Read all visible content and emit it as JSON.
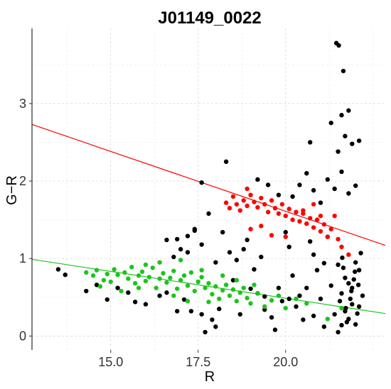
{
  "chart_data": {
    "type": "scatter",
    "title": "J01149_0022",
    "xlabel": "R",
    "ylabel": "G−R",
    "xlim": [
      12.75,
      22.85
    ],
    "ylim": [
      -0.18,
      3.97
    ],
    "x_ticks": [
      15.0,
      17.5,
      20.0
    ],
    "x_tick_labels": [
      "15.0",
      "17.5",
      "20.0"
    ],
    "y_ticks": [
      0,
      1,
      2,
      3
    ],
    "y_tick_labels": [
      "0",
      "1",
      "2",
      "3"
    ],
    "grid": true,
    "colors": {
      "black": "#000000",
      "green": "#1cc41c",
      "red": "#ff0000"
    },
    "lines": [
      {
        "color": "#ff0000",
        "x": [
          12.75,
          22.85
        ],
        "y": [
          2.73,
          1.17
        ]
      },
      {
        "color": "#1cc41c",
        "x": [
          12.75,
          22.85
        ],
        "y": [
          0.99,
          0.29
        ]
      }
    ],
    "series": [
      {
        "color": "#000000",
        "points": [
          [
            13.5,
            0.86
          ],
          [
            13.7,
            0.79
          ],
          [
            14.3,
            0.58
          ],
          [
            14.6,
            0.66
          ],
          [
            14.9,
            0.47
          ],
          [
            15.2,
            0.62
          ],
          [
            15.5,
            0.56
          ],
          [
            15.7,
            0.44
          ],
          [
            16.0,
            0.41
          ],
          [
            16.4,
            0.52
          ],
          [
            16.6,
            1.24
          ],
          [
            16.8,
            1.02
          ],
          [
            17.0,
            1.12
          ],
          [
            17.2,
            1.29
          ],
          [
            17.4,
            1.38
          ],
          [
            17.6,
            1.18
          ],
          [
            17.8,
            1.58
          ],
          [
            17.3,
            0.32
          ],
          [
            17.6,
            0.28
          ],
          [
            17.9,
            0.21
          ],
          [
            18.0,
            0.12
          ],
          [
            17.7,
            0.05
          ],
          [
            18.2,
            1.34
          ],
          [
            18.4,
            1.08
          ],
          [
            18.6,
            0.98
          ],
          [
            18.8,
            1.12
          ],
          [
            18.9,
            1.24
          ],
          [
            19.0,
            0.61
          ],
          [
            19.1,
            0.86
          ],
          [
            19.3,
            1.02
          ],
          [
            19.4,
            0.34
          ],
          [
            19.6,
            0.24
          ],
          [
            19.7,
            0.08
          ],
          [
            19.9,
            0.45
          ],
          [
            20.0,
            1.34
          ],
          [
            20.1,
            1.15
          ],
          [
            20.2,
            0.78
          ],
          [
            20.4,
            0.52
          ],
          [
            20.5,
            0.21
          ],
          [
            20.6,
            0.62
          ],
          [
            20.7,
            1.22
          ],
          [
            20.8,
            1.05
          ],
          [
            20.9,
            0.85
          ],
          [
            21.0,
            0.48
          ],
          [
            21.1,
            0.94
          ],
          [
            21.2,
            1.28
          ],
          [
            21.3,
            0.65
          ],
          [
            21.4,
            0.28
          ],
          [
            21.5,
            0.92
          ],
          [
            21.6,
            0.14
          ],
          [
            21.7,
            0.32
          ],
          [
            21.8,
            0.68
          ],
          [
            21.9,
            0.41
          ],
          [
            22.0,
            0.15
          ],
          [
            22.1,
            0.85
          ],
          [
            22.2,
            0.52
          ],
          [
            21.5,
            0.05
          ],
          [
            21.6,
            0.55
          ],
          [
            21.7,
            0.75
          ],
          [
            21.8,
            0.22
          ],
          [
            21.9,
            0.62
          ],
          [
            22.0,
            0.95
          ],
          [
            22.1,
            0.38
          ],
          [
            22.15,
            1.07
          ],
          [
            21.55,
            0.45
          ],
          [
            21.65,
            0.88
          ],
          [
            21.75,
            0.18
          ],
          [
            21.85,
            0.48
          ],
          [
            21.95,
            0.73
          ],
          [
            22.05,
            0.29
          ],
          [
            21.62,
            1.01
          ],
          [
            21.88,
            0.58
          ],
          [
            22.08,
            0.66
          ],
          [
            21.72,
            0.36
          ],
          [
            21.98,
            0.83
          ],
          [
            20.2,
            1.8
          ],
          [
            20.4,
            1.95
          ],
          [
            20.6,
            2.1
          ],
          [
            20.8,
            1.88
          ],
          [
            21.0,
            1.72
          ],
          [
            21.2,
            2.02
          ],
          [
            21.4,
            1.9
          ],
          [
            21.6,
            2.12
          ],
          [
            21.8,
            1.84
          ],
          [
            22.0,
            1.94
          ],
          [
            21.5,
            2.38
          ],
          [
            21.7,
            2.58
          ],
          [
            21.9,
            2.48
          ],
          [
            22.1,
            2.52
          ],
          [
            21.3,
            2.75
          ],
          [
            21.8,
            2.91
          ],
          [
            21.6,
            2.85
          ],
          [
            21.65,
            3.42
          ],
          [
            21.45,
            3.78
          ],
          [
            21.52,
            3.75
          ],
          [
            19.2,
            2.02
          ],
          [
            19.5,
            1.95
          ],
          [
            19.8,
            1.82
          ],
          [
            18.3,
            2.25
          ],
          [
            20.7,
            2.5
          ],
          [
            17.6,
            1.98
          ],
          [
            17.2,
            1.08
          ],
          [
            16.9,
            1.25
          ],
          [
            17.4,
            1.36
          ],
          [
            18.0,
            0.95
          ],
          [
            18.5,
            0.72
          ],
          [
            19.2,
            0.55
          ],
          [
            19.8,
            0.62
          ],
          [
            20.3,
            0.38
          ],
          [
            20.8,
            0.26
          ],
          [
            21.1,
            0.12
          ],
          [
            16.6,
            0.56
          ],
          [
            16.9,
            0.32
          ],
          [
            17.1,
            0.47
          ],
          [
            18.1,
            0.35
          ],
          [
            18.7,
            0.28
          ],
          [
            19.4,
            0.51
          ],
          [
            20.1,
            0.48
          ]
        ]
      },
      {
        "color": "#1cc41c",
        "points": [
          [
            14.3,
            0.82
          ],
          [
            14.5,
            0.78
          ],
          [
            14.6,
            0.85
          ],
          [
            14.8,
            0.72
          ],
          [
            14.9,
            0.8
          ],
          [
            15.0,
            0.7
          ],
          [
            15.1,
            0.86
          ],
          [
            15.2,
            0.79
          ],
          [
            15.4,
            0.82
          ],
          [
            15.5,
            0.74
          ],
          [
            15.6,
            0.89
          ],
          [
            15.7,
            0.68
          ],
          [
            15.8,
            0.78
          ],
          [
            15.9,
            0.83
          ],
          [
            16.0,
            0.71
          ],
          [
            16.1,
            0.76
          ],
          [
            16.2,
            0.88
          ],
          [
            16.3,
            0.62
          ],
          [
            16.4,
            0.74
          ],
          [
            16.5,
            0.81
          ],
          [
            16.6,
            0.69
          ],
          [
            16.7,
            0.75
          ],
          [
            16.8,
            0.84
          ],
          [
            16.9,
            0.61
          ],
          [
            17.0,
            0.72
          ],
          [
            17.1,
            0.78
          ],
          [
            17.2,
            0.65
          ],
          [
            17.3,
            0.82
          ],
          [
            17.4,
            0.58
          ],
          [
            17.5,
            0.7
          ],
          [
            17.6,
            0.76
          ],
          [
            17.7,
            0.62
          ],
          [
            17.8,
            0.68
          ],
          [
            17.9,
            0.54
          ],
          [
            18.0,
            0.64
          ],
          [
            18.1,
            0.48
          ],
          [
            18.2,
            0.59
          ],
          [
            18.3,
            0.66
          ],
          [
            18.4,
            0.52
          ],
          [
            18.5,
            0.6
          ],
          [
            18.6,
            0.45
          ],
          [
            18.7,
            0.56
          ],
          [
            18.8,
            0.62
          ],
          [
            18.9,
            0.49
          ],
          [
            19.0,
            0.42
          ],
          [
            19.2,
            0.55
          ],
          [
            19.4,
            0.38
          ],
          [
            19.6,
            0.46
          ],
          [
            19.8,
            0.52
          ],
          [
            20.0,
            0.36
          ],
          [
            20.3,
            0.48
          ],
          [
            20.6,
            0.42
          ],
          [
            21.2,
            0.22
          ],
          [
            21.6,
            0.36
          ],
          [
            14.7,
            0.64
          ],
          [
            15.3,
            0.58
          ],
          [
            16.0,
            0.92
          ],
          [
            16.4,
            0.95
          ],
          [
            17.0,
            0.98
          ],
          [
            17.6,
            0.85
          ],
          [
            18.2,
            0.78
          ],
          [
            16.8,
            0.52
          ],
          [
            17.2,
            0.45
          ],
          [
            17.8,
            0.44
          ],
          [
            15.8,
            0.62
          ],
          [
            18.6,
            0.72
          ],
          [
            19.1,
            0.66
          ]
        ]
      },
      {
        "color": "#ff0000",
        "points": [
          [
            18.3,
            1.72
          ],
          [
            18.4,
            1.65
          ],
          [
            18.5,
            1.8
          ],
          [
            18.6,
            1.7
          ],
          [
            18.7,
            1.62
          ],
          [
            18.8,
            1.75
          ],
          [
            18.9,
            1.68
          ],
          [
            19.0,
            1.82
          ],
          [
            19.1,
            1.73
          ],
          [
            19.2,
            1.66
          ],
          [
            19.3,
            1.78
          ],
          [
            19.4,
            1.7
          ],
          [
            19.5,
            1.6
          ],
          [
            19.6,
            1.75
          ],
          [
            19.7,
            1.65
          ],
          [
            19.8,
            1.58
          ],
          [
            19.9,
            1.7
          ],
          [
            20.0,
            1.55
          ],
          [
            20.1,
            1.64
          ],
          [
            20.2,
            1.5
          ],
          [
            20.3,
            1.6
          ],
          [
            20.4,
            1.48
          ],
          [
            20.5,
            1.58
          ],
          [
            20.6,
            1.45
          ],
          [
            20.7,
            1.52
          ],
          [
            20.8,
            1.4
          ],
          [
            20.9,
            1.5
          ],
          [
            21.0,
            1.35
          ],
          [
            21.1,
            1.44
          ],
          [
            21.2,
            1.28
          ],
          [
            21.3,
            1.38
          ],
          [
            21.4,
            1.55
          ],
          [
            21.5,
            1.25
          ],
          [
            21.6,
            1.15
          ],
          [
            21.8,
            1.05
          ],
          [
            19.0,
            1.38
          ],
          [
            19.3,
            1.42
          ],
          [
            19.6,
            1.3
          ],
          [
            20.0,
            1.28
          ],
          [
            20.5,
            1.62
          ],
          [
            20.8,
            1.7
          ],
          [
            21.0,
            1.55
          ],
          [
            18.9,
            1.9
          ]
        ]
      }
    ]
  }
}
